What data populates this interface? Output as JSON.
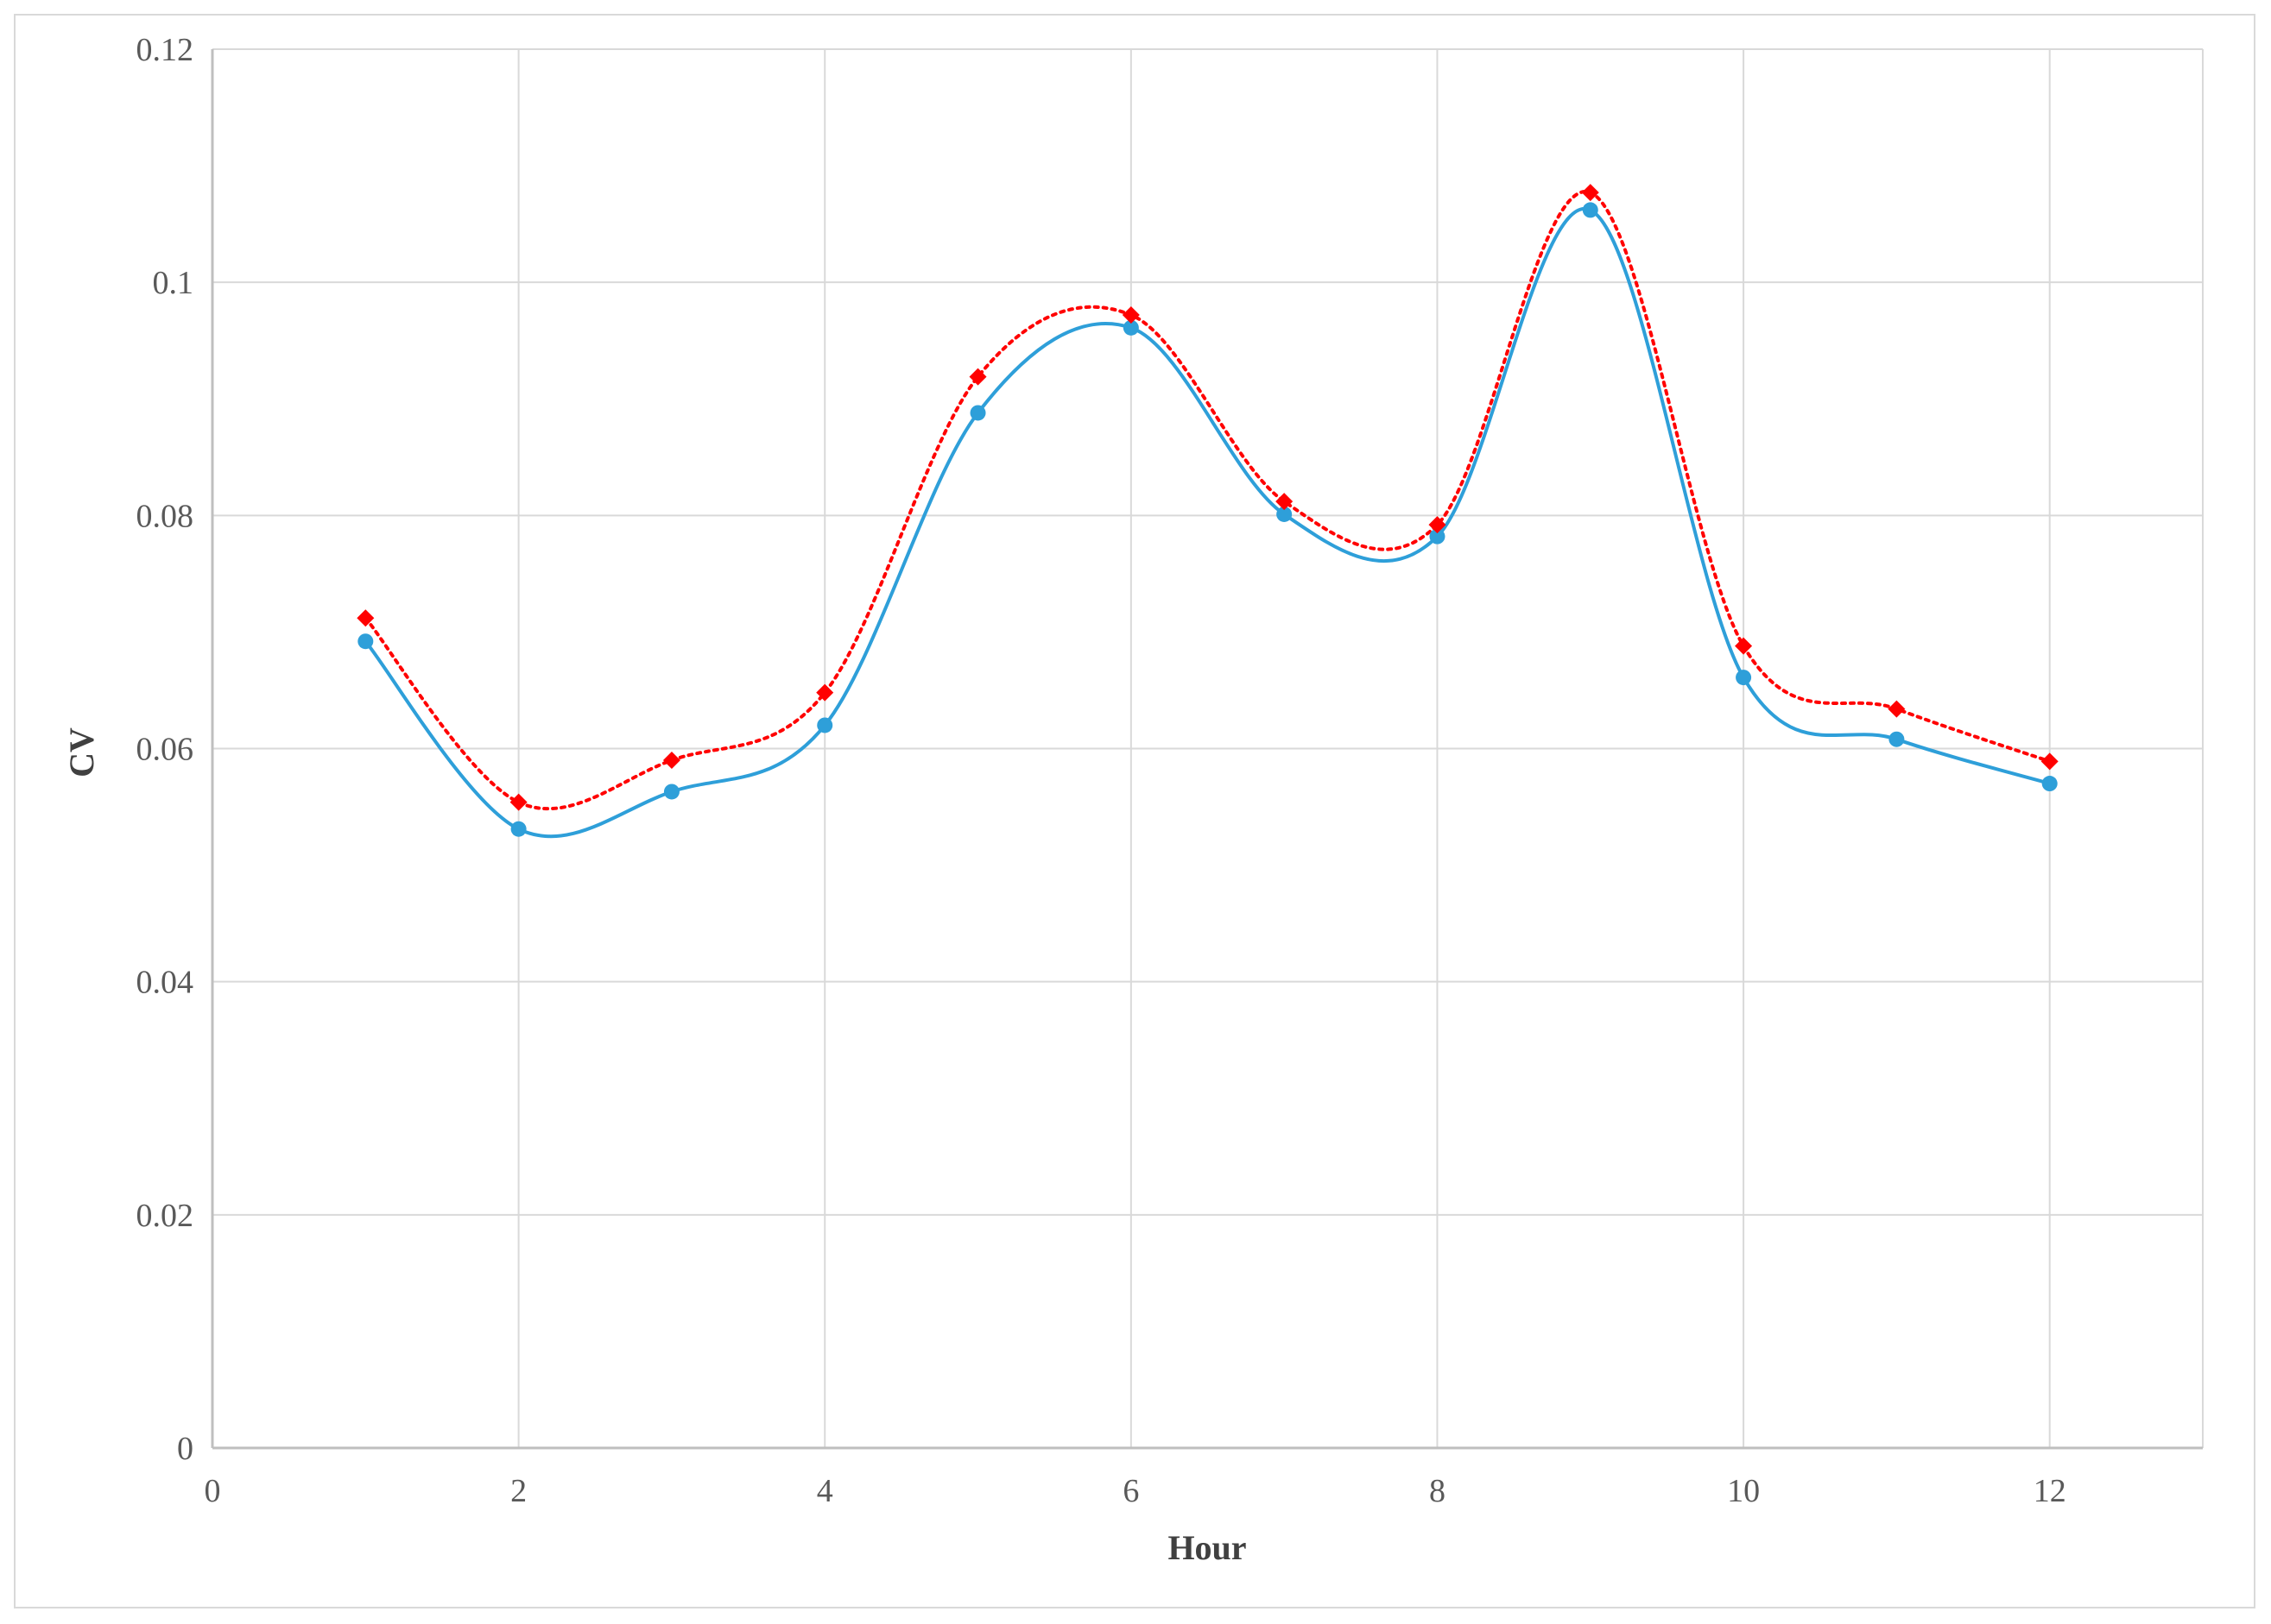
{
  "chart_data": {
    "type": "line",
    "title": "",
    "xlabel": "Hour",
    "ylabel": "CV",
    "xlim": [
      0,
      13
    ],
    "ylim": [
      0,
      0.12
    ],
    "x_ticks": [
      0,
      2,
      4,
      6,
      8,
      10,
      12
    ],
    "x_tick_labels": [
      "0",
      "2",
      "4",
      "6",
      "8",
      "10",
      "12"
    ],
    "y_ticks": [
      0,
      0.02,
      0.04,
      0.06,
      0.08,
      0.1,
      0.12
    ],
    "y_tick_labels": [
      "0",
      "0.02",
      "0.04",
      "0.06",
      "0.08",
      "0.1",
      "0.12"
    ],
    "grid": true,
    "legend": "none",
    "x": [
      1,
      2,
      3,
      4,
      5,
      6,
      7,
      8,
      9,
      10,
      11,
      12
    ],
    "series": [
      {
        "values": [
          0.0692,
          0.0531,
          0.0563,
          0.062,
          0.0888,
          0.0961,
          0.0801,
          0.0782,
          0.1062,
          0.0661,
          0.0608,
          0.057
        ],
        "color": "#2e9fd9",
        "line_style": "solid",
        "marker": "circle"
      },
      {
        "values": [
          0.0712,
          0.0554,
          0.059,
          0.0648,
          0.0919,
          0.0972,
          0.0812,
          0.0792,
          0.1077,
          0.0688,
          0.0634,
          0.0589
        ],
        "color": "#ff0000",
        "line_style": "dotted",
        "marker": "diamond"
      }
    ],
    "colors": {
      "grid": "#d9d9d9",
      "axis": "#bfbfbf",
      "tick_text": "#595959",
      "title_text": "#404040"
    }
  }
}
